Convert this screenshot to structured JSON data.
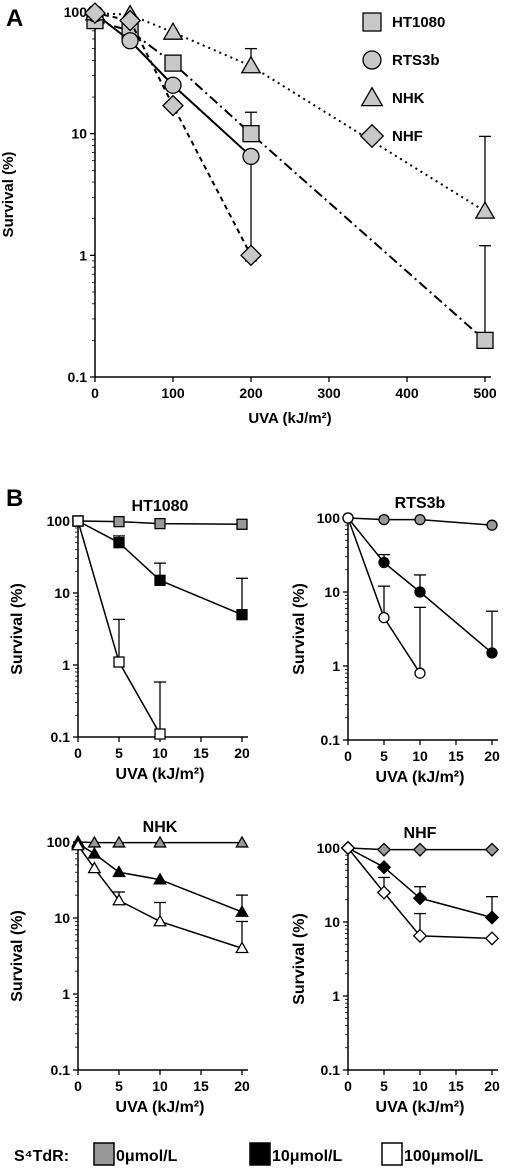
{
  "panel_labels": {
    "a": "A",
    "b": "B"
  },
  "legend_b": {
    "prefix": "S⁴TdR:",
    "items": [
      {
        "label": "0μmol/L",
        "color": "#999999"
      },
      {
        "label": "10μmol/L",
        "color": "#000000"
      },
      {
        "label": "100μmol/L",
        "color": "#ffffff"
      }
    ]
  },
  "chart_data": [
    {
      "type": "line",
      "panel": "A",
      "title": "",
      "xlabel": "UVA (kJ/m²)",
      "ylabel": "Survival (%)",
      "y_scale": "log",
      "ylim": [
        0.1,
        100
      ],
      "yticks": [
        "100",
        "10",
        "1",
        "0.1"
      ],
      "xticks": [
        0,
        100,
        200,
        300,
        400,
        500
      ],
      "legend_position": "top-right",
      "series": [
        {
          "name": "HT1080",
          "marker": "square",
          "line": "dash-dot",
          "x": [
            0,
            45,
            100,
            200,
            500
          ],
          "y": [
            85,
            70,
            38,
            10,
            0.2
          ],
          "err": [
            null,
            null,
            null,
            15,
            1.2
          ]
        },
        {
          "name": "RTS3b",
          "marker": "circle",
          "line": "solid",
          "x": [
            0,
            45,
            100,
            200
          ],
          "y": [
            97,
            58,
            25,
            6.5
          ],
          "err": [
            null,
            null,
            null,
            0.9
          ]
        },
        {
          "name": "NHK",
          "marker": "triangle",
          "line": "dotted",
          "x": [
            0,
            45,
            100,
            200,
            500
          ],
          "y": [
            98,
            95,
            68,
            36,
            2.3
          ],
          "err": [
            null,
            null,
            null,
            50,
            9.5
          ]
        },
        {
          "name": "NHF",
          "marker": "diamond",
          "line": "dashed",
          "x": [
            0,
            45,
            100,
            200
          ],
          "y": [
            98,
            85,
            17,
            1.0
          ],
          "err": [
            null,
            null,
            null,
            null
          ]
        }
      ]
    },
    {
      "type": "line",
      "panel": "B",
      "title": "HT1080",
      "marker": "square",
      "xlabel": "UVA (kJ/m²)",
      "ylabel": "Survival (%)",
      "y_scale": "log",
      "ylim": [
        0.1,
        100
      ],
      "xticks": [
        0,
        5,
        10,
        15,
        20
      ],
      "yticks": [
        "100",
        "10",
        "1",
        "0.1"
      ],
      "series": [
        {
          "name": "0μmol/L",
          "x": [
            0,
            5,
            10,
            20
          ],
          "y": [
            100,
            98,
            92,
            90
          ],
          "err": [
            null,
            null,
            null,
            null
          ]
        },
        {
          "name": "10μmol/L",
          "x": [
            0,
            5,
            10,
            20
          ],
          "y": [
            100,
            50,
            15,
            5
          ],
          "err": [
            null,
            62,
            26,
            16
          ]
        },
        {
          "name": "100μmol/L",
          "x": [
            0,
            5,
            10
          ],
          "y": [
            100,
            1.1,
            0.11
          ],
          "err": [
            null,
            4.3,
            0.58
          ]
        }
      ]
    },
    {
      "type": "line",
      "panel": "B",
      "title": "RTS3b",
      "marker": "circle",
      "xlabel": "UVA (kJ/m²)",
      "ylabel": "Survival (%)",
      "y_scale": "log",
      "ylim": [
        0.1,
        100
      ],
      "xticks": [
        0,
        5,
        10,
        15,
        20
      ],
      "yticks": [
        "100",
        "10",
        "1",
        "0.1"
      ],
      "series": [
        {
          "name": "0μmol/L",
          "x": [
            0,
            5,
            10,
            20
          ],
          "y": [
            100,
            95,
            95,
            80
          ],
          "err": [
            null,
            null,
            null,
            null
          ]
        },
        {
          "name": "10μmol/L",
          "x": [
            0,
            5,
            10,
            20
          ],
          "y": [
            100,
            25,
            10,
            1.5
          ],
          "err": [
            null,
            32,
            17,
            5.5
          ]
        },
        {
          "name": "100μmol/L",
          "x": [
            0,
            5,
            10
          ],
          "y": [
            100,
            4.5,
            0.8
          ],
          "err": [
            null,
            12,
            6.2
          ]
        }
      ]
    },
    {
      "type": "line",
      "panel": "B",
      "title": "NHK",
      "marker": "triangle",
      "xlabel": "UVA (kJ/m²)",
      "ylabel": "Survival (%)",
      "y_scale": "log",
      "ylim": [
        0.1,
        100
      ],
      "xticks": [
        0,
        5,
        10,
        15,
        20
      ],
      "yticks": [
        "100",
        "10",
        "1",
        "0.1"
      ],
      "series": [
        {
          "name": "0μmol/L",
          "x": [
            0,
            2,
            5,
            10,
            20
          ],
          "y": [
            100,
            98,
            98,
            98,
            98
          ],
          "err": [
            null,
            null,
            null,
            null,
            null
          ]
        },
        {
          "name": "10μmol/L",
          "x": [
            0,
            2,
            5,
            10,
            20
          ],
          "y": [
            95,
            70,
            40,
            32,
            12
          ],
          "err": [
            null,
            null,
            null,
            null,
            20
          ]
        },
        {
          "name": "100μmol/L",
          "x": [
            0,
            2,
            5,
            10,
            20
          ],
          "y": [
            90,
            45,
            17,
            9,
            4
          ],
          "err": [
            null,
            null,
            22,
            16,
            9
          ]
        }
      ]
    },
    {
      "type": "line",
      "panel": "B",
      "title": "NHF",
      "marker": "diamond",
      "xlabel": "UVA (kJ/m²)",
      "ylabel": "Survival (%)",
      "y_scale": "log",
      "ylim": [
        0.1,
        100
      ],
      "xticks": [
        0,
        5,
        10,
        15,
        20
      ],
      "yticks": [
        "100",
        "10",
        "1",
        "0.1"
      ],
      "series": [
        {
          "name": "0μmol/L",
          "x": [
            0,
            5,
            10,
            20
          ],
          "y": [
            100,
            95,
            95,
            95
          ],
          "err": [
            null,
            null,
            null,
            null
          ]
        },
        {
          "name": "10μmol/L",
          "x": [
            0,
            5,
            10,
            20
          ],
          "y": [
            100,
            55,
            21,
            11.5
          ],
          "err": [
            null,
            null,
            30,
            22
          ]
        },
        {
          "name": "100μmol/L",
          "x": [
            0,
            5,
            10,
            20
          ],
          "y": [
            100,
            25,
            6.5,
            6
          ],
          "err": [
            null,
            40,
            13,
            null
          ]
        }
      ]
    }
  ]
}
